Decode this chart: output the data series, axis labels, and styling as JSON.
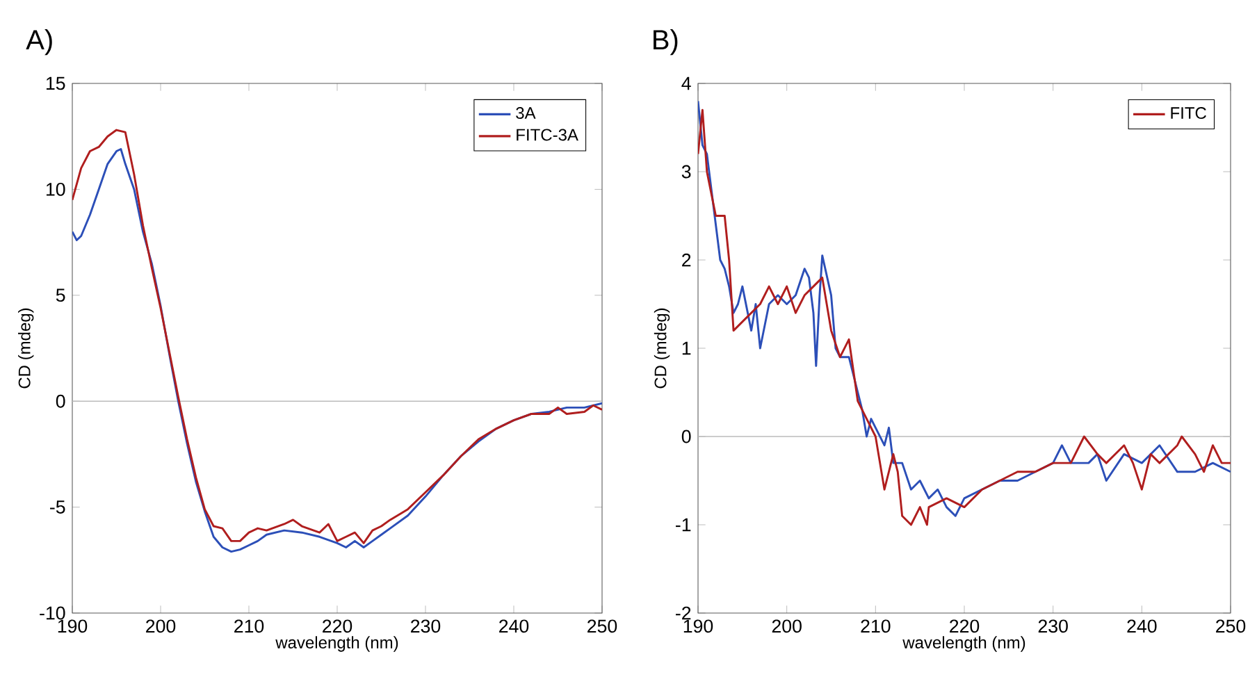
{
  "chart_data": [
    {
      "type": "line",
      "title": "A)",
      "xlabel": "wavelength (nm)",
      "ylabel": "CD (mdeg)",
      "xlim": [
        190,
        250
      ],
      "ylim": [
        -10,
        15
      ],
      "xticks": [
        190,
        200,
        210,
        220,
        230,
        240,
        250
      ],
      "yticks": [
        -10,
        -5,
        0,
        5,
        10,
        15
      ],
      "legend": "top right",
      "grid": false,
      "ref_lines": [
        {
          "axis": "y",
          "value": 0,
          "color": "#bbbbbb"
        }
      ],
      "series": [
        {
          "name": "3A",
          "color": "#2c4fb8",
          "x": [
            190,
            190.5,
            191,
            192,
            193,
            194,
            195,
            195.5,
            196,
            197,
            198,
            199,
            200,
            201,
            202,
            203,
            204,
            205,
            206,
            207,
            208,
            209,
            210,
            211,
            212,
            214,
            216,
            218,
            220,
            221,
            222,
            223,
            224,
            225,
            226,
            228,
            230,
            232,
            234,
            236,
            238,
            240,
            242,
            244,
            246,
            248,
            250
          ],
          "values": [
            8.0,
            7.6,
            7.8,
            8.8,
            10.0,
            11.2,
            11.8,
            11.9,
            11.2,
            10.0,
            8.0,
            6.5,
            4.5,
            2.2,
            0.0,
            -2.0,
            -3.8,
            -5.2,
            -6.4,
            -6.9,
            -7.1,
            -7.0,
            -6.8,
            -6.6,
            -6.3,
            -6.1,
            -6.2,
            -6.4,
            -6.7,
            -6.9,
            -6.6,
            -6.9,
            -6.6,
            -6.3,
            -6.0,
            -5.4,
            -4.5,
            -3.5,
            -2.6,
            -1.9,
            -1.3,
            -0.9,
            -0.6,
            -0.5,
            -0.3,
            -0.3,
            -0.1
          ]
        },
        {
          "name": "FITC-3A",
          "color": "#b01e1e",
          "x": [
            190,
            191,
            192,
            193,
            194,
            195,
            196,
            197,
            198,
            199,
            200,
            201,
            202,
            203,
            204,
            205,
            206,
            207,
            208,
            209,
            210,
            211,
            212,
            214,
            215,
            216,
            218,
            219,
            220,
            221,
            222,
            223,
            224,
            225,
            226,
            228,
            230,
            232,
            234,
            236,
            238,
            240,
            242,
            244,
            245,
            246,
            248,
            249,
            250
          ],
          "values": [
            9.5,
            11.0,
            11.8,
            12.0,
            12.5,
            12.8,
            12.7,
            10.7,
            8.3,
            6.3,
            4.4,
            2.3,
            0.2,
            -1.8,
            -3.6,
            -5.1,
            -5.9,
            -6.0,
            -6.6,
            -6.6,
            -6.2,
            -6.0,
            -6.1,
            -5.8,
            -5.6,
            -5.9,
            -6.2,
            -5.8,
            -6.6,
            -6.4,
            -6.2,
            -6.7,
            -6.1,
            -5.9,
            -5.6,
            -5.1,
            -4.3,
            -3.5,
            -2.6,
            -1.8,
            -1.3,
            -0.9,
            -0.6,
            -0.6,
            -0.3,
            -0.6,
            -0.5,
            -0.2,
            -0.4
          ]
        }
      ]
    },
    {
      "type": "line",
      "title": "B)",
      "xlabel": "wavelength (nm)",
      "ylabel": "CD (mdeg)",
      "xlim": [
        190,
        250
      ],
      "ylim": [
        -2,
        4
      ],
      "xticks": [
        190,
        200,
        210,
        220,
        230,
        240,
        250
      ],
      "yticks": [
        -2,
        -1,
        0,
        1,
        2,
        3,
        4
      ],
      "legend": "top right",
      "grid": false,
      "ref_lines": [
        {
          "axis": "y",
          "value": 0,
          "color": "#bbbbbb"
        }
      ],
      "series": [
        {
          "color": "#2c4fb8",
          "x": [
            190,
            190.5,
            191,
            191.5,
            192,
            192.5,
            193,
            193.5,
            194,
            194.5,
            195,
            196,
            196.5,
            197,
            198,
            199,
            200,
            201,
            202,
            202.5,
            203,
            203.3,
            203.7,
            204,
            205,
            205.5,
            206,
            207,
            208,
            208.5,
            209,
            209.5,
            210,
            211,
            211.5,
            212,
            213,
            214,
            215,
            216,
            217,
            218,
            219,
            220,
            222,
            224,
            226,
            228,
            230,
            231,
            232,
            234,
            235,
            236,
            238,
            240,
            242,
            244,
            246,
            248,
            250
          ],
          "values": [
            3.8,
            3.3,
            3.2,
            2.8,
            2.4,
            2.0,
            1.9,
            1.7,
            1.4,
            1.5,
            1.7,
            1.2,
            1.5,
            1.0,
            1.5,
            1.6,
            1.5,
            1.6,
            1.9,
            1.8,
            1.4,
            0.8,
            1.6,
            2.05,
            1.6,
            1.0,
            0.9,
            0.9,
            0.5,
            0.3,
            0.0,
            0.2,
            0.1,
            -0.1,
            0.1,
            -0.3,
            -0.3,
            -0.6,
            -0.5,
            -0.7,
            -0.6,
            -0.8,
            -0.9,
            -0.7,
            -0.6,
            -0.5,
            -0.5,
            -0.4,
            -0.3,
            -0.1,
            -0.3,
            -0.3,
            -0.2,
            -0.5,
            -0.2,
            -0.3,
            -0.1,
            -0.4,
            -0.4,
            -0.3,
            -0.4
          ]
        },
        {
          "name": "FITC",
          "color": "#b01e1e",
          "x": [
            190,
            190.5,
            191,
            192,
            193,
            193.5,
            194,
            195,
            196,
            197,
            198,
            199,
            200,
            201,
            202,
            203,
            204,
            205,
            206,
            207,
            208,
            209,
            210,
            211,
            212,
            212.5,
            213,
            214,
            215,
            215.8,
            216,
            218,
            220,
            222,
            224,
            226,
            228,
            230,
            232,
            233.5,
            235,
            236,
            238,
            239,
            240,
            241,
            242,
            244,
            244.5,
            246,
            247,
            248,
            249,
            250
          ],
          "values": [
            3.2,
            3.7,
            3.0,
            2.5,
            2.5,
            2.0,
            1.2,
            1.3,
            1.4,
            1.5,
            1.7,
            1.5,
            1.7,
            1.4,
            1.6,
            1.7,
            1.8,
            1.2,
            0.9,
            1.1,
            0.4,
            0.2,
            0.0,
            -0.6,
            -0.2,
            -0.4,
            -0.9,
            -1.0,
            -0.8,
            -1.0,
            -0.8,
            -0.7,
            -0.8,
            -0.6,
            -0.5,
            -0.4,
            -0.4,
            -0.3,
            -0.3,
            0.0,
            -0.2,
            -0.3,
            -0.1,
            -0.3,
            -0.6,
            -0.2,
            -0.3,
            -0.1,
            0.0,
            -0.2,
            -0.4,
            -0.1,
            -0.3,
            -0.3
          ]
        }
      ]
    }
  ]
}
